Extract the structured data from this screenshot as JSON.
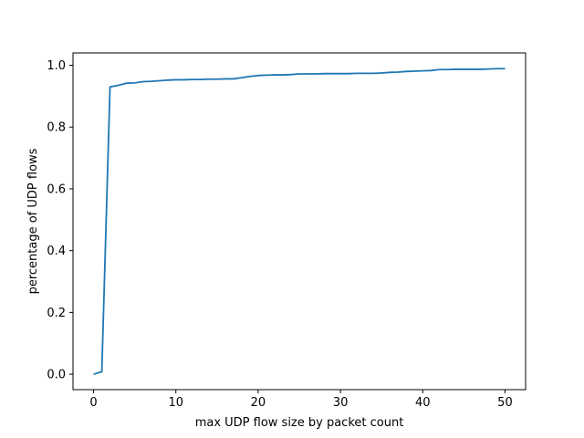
{
  "chart_data": {
    "type": "line",
    "title": "",
    "xlabel": "max UDP flow size by packet count",
    "ylabel": "percentage of UDP flows",
    "xlim": [
      -2.5,
      52.5
    ],
    "ylim": [
      -0.05,
      1.04
    ],
    "xticks": [
      0,
      10,
      20,
      30,
      40,
      50
    ],
    "xtick_labels": [
      "0",
      "10",
      "20",
      "30",
      "40",
      "50"
    ],
    "yticks": [
      0.0,
      0.2,
      0.4,
      0.6,
      0.8,
      1.0
    ],
    "ytick_labels": [
      "0.0",
      "0.2",
      "0.4",
      "0.6",
      "0.8",
      "1.0"
    ],
    "grid": false,
    "legend": "none",
    "series": [
      {
        "color": "#1f77b4",
        "x": [
          0,
          1,
          2,
          3,
          4,
          5,
          6,
          7,
          8,
          9,
          10,
          11,
          12,
          13,
          14,
          15,
          16,
          17,
          18,
          19,
          20,
          21,
          22,
          23,
          24,
          25,
          26,
          27,
          28,
          29,
          30,
          31,
          32,
          33,
          34,
          35,
          36,
          37,
          38,
          39,
          40,
          41,
          42,
          43,
          44,
          45,
          46,
          47,
          48,
          49,
          50
        ],
        "y": [
          0.0,
          0.008,
          0.93,
          0.935,
          0.942,
          0.943,
          0.947,
          0.948,
          0.95,
          0.952,
          0.953,
          0.953,
          0.954,
          0.954,
          0.955,
          0.955,
          0.956,
          0.956,
          0.96,
          0.964,
          0.967,
          0.968,
          0.969,
          0.969,
          0.97,
          0.972,
          0.972,
          0.972,
          0.973,
          0.973,
          0.973,
          0.973,
          0.974,
          0.974,
          0.974,
          0.975,
          0.977,
          0.978,
          0.98,
          0.981,
          0.982,
          0.983,
          0.986,
          0.986,
          0.987,
          0.987,
          0.987,
          0.987,
          0.988,
          0.989,
          0.989
        ]
      }
    ]
  }
}
